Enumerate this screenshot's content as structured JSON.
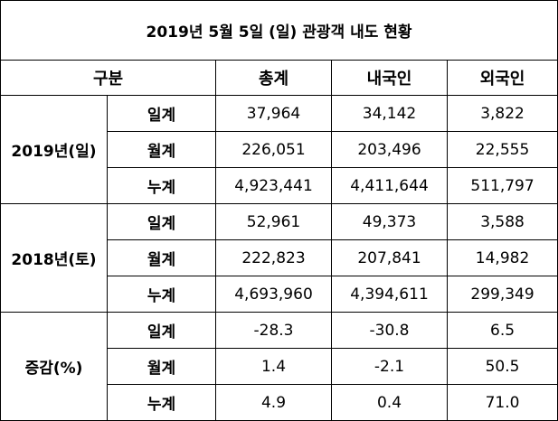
{
  "header": {
    "title": "2019년 5월 5일 (일) 관광객 내도 현황"
  },
  "table": {
    "columns": [
      "구분",
      "총계",
      "내국인",
      "외국인"
    ],
    "groups": [
      {
        "label": "2019년(일)",
        "rows": [
          {
            "label": "일계",
            "values": [
              "37,964",
              "34,142",
              "3,822"
            ]
          },
          {
            "label": "월계",
            "values": [
              "226,051",
              "203,496",
              "22,555"
            ]
          },
          {
            "label": "누계",
            "values": [
              "4,923,441",
              "4,411,644",
              "511,797"
            ]
          }
        ]
      },
      {
        "label": "2018년(토)",
        "rows": [
          {
            "label": "일계",
            "values": [
              "52,961",
              "49,373",
              "3,588"
            ]
          },
          {
            "label": "월계",
            "values": [
              "222,823",
              "207,841",
              "14,982"
            ]
          },
          {
            "label": "누계",
            "values": [
              "4,693,960",
              "4,394,611",
              "299,349"
            ]
          }
        ]
      },
      {
        "label": "증감(%)",
        "rows": [
          {
            "label": "일계",
            "values": [
              "-28.3",
              "-30.8",
              "6.5"
            ]
          },
          {
            "label": "월계",
            "values": [
              "1.4",
              "-2.1",
              "50.5"
            ]
          },
          {
            "label": "누계",
            "values": [
              "4.9",
              "0.4",
              "71.0"
            ]
          }
        ]
      }
    ]
  }
}
